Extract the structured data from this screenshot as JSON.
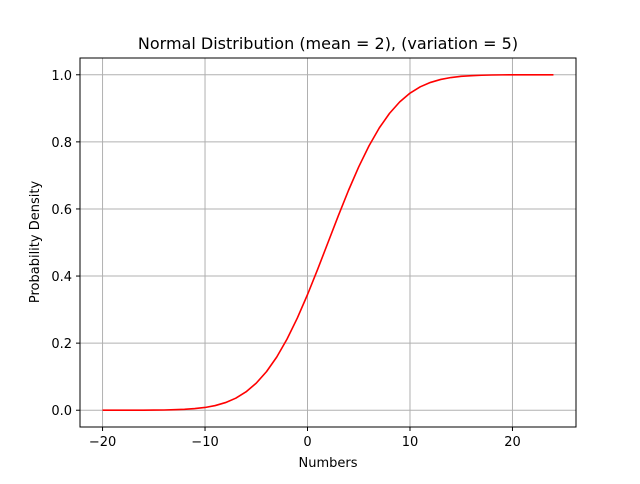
{
  "chart_data": {
    "type": "line",
    "title": "Normal Distribution (mean = 2), (variation = 5)",
    "xlabel": "Numbers",
    "ylabel": "Probability Density",
    "xlim": [
      -22.2,
      26.2
    ],
    "ylim": [
      -0.05,
      1.05
    ],
    "xticks": [
      -20,
      -10,
      0,
      10,
      20
    ],
    "xtick_labels": [
      "−20",
      "−10",
      "0",
      "10",
      "20"
    ],
    "yticks": [
      0.0,
      0.2,
      0.4,
      0.6,
      0.8,
      1.0
    ],
    "ytick_labels": [
      "0.0",
      "0.2",
      "0.4",
      "0.6",
      "0.8",
      "1.0"
    ],
    "grid": true,
    "series": [
      {
        "color": "#ff0000",
        "x": [
          -20,
          -19,
          -18,
          -17,
          -16,
          -15,
          -14,
          -13,
          -12,
          -11,
          -10,
          -9,
          -8,
          -7,
          -6,
          -5,
          -4,
          -3,
          -2,
          -1,
          0,
          1,
          2,
          3,
          4,
          5,
          6,
          7,
          8,
          9,
          10,
          11,
          12,
          13,
          14,
          15,
          16,
          17,
          18,
          19,
          20,
          21,
          22,
          23,
          24
        ],
        "y": [
          0.0,
          0.0,
          0.0,
          0.0001,
          0.0002,
          0.0005,
          0.0007,
          0.0017,
          0.0026,
          0.005,
          0.0082,
          0.0139,
          0.0228,
          0.0359,
          0.0548,
          0.0808,
          0.1151,
          0.1587,
          0.2119,
          0.2743,
          0.3446,
          0.4207,
          0.5,
          0.5793,
          0.6554,
          0.7257,
          0.7881,
          0.8413,
          0.8849,
          0.9192,
          0.9452,
          0.9641,
          0.9772,
          0.9861,
          0.9918,
          0.9953,
          0.9974,
          0.9986,
          0.9993,
          0.9997,
          0.9998,
          0.9999,
          1.0,
          1.0,
          1.0
        ]
      }
    ]
  },
  "colors": {
    "grid": "#b0b0b0",
    "axes": "#000000",
    "background": "#ffffff"
  }
}
